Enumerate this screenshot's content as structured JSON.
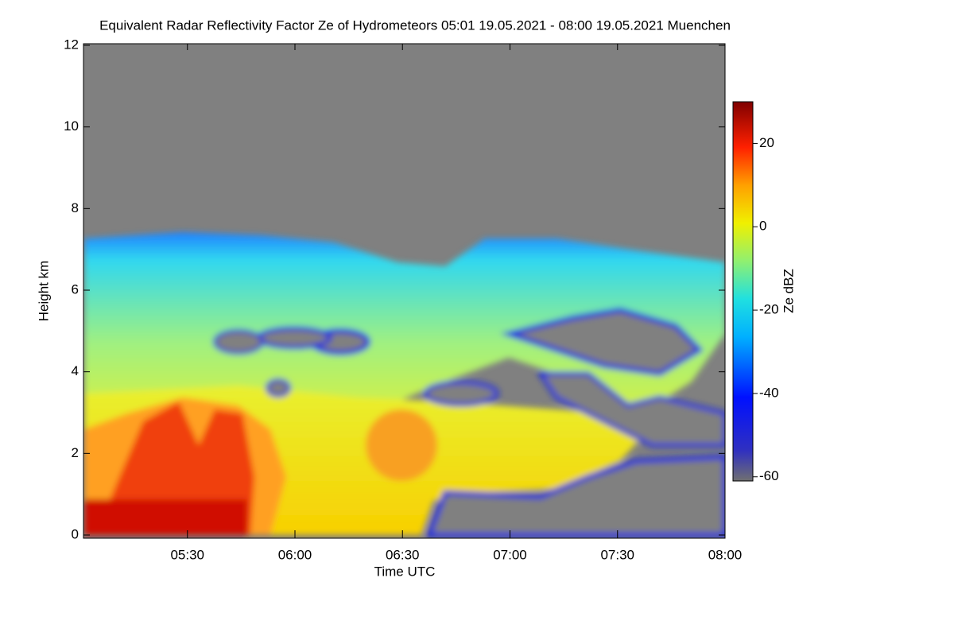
{
  "chart_data": {
    "type": "heatmap",
    "title": "Equivalent Radar Reflectivity Factor Ze of Hydrometeors   05:01 19.05.2021 - 08:00 19.05.2021 Muenchen",
    "x_label": "Time UTC",
    "y_label": "Height km",
    "xlim": [
      301,
      480
    ],
    "xticks": [
      {
        "value": 330,
        "label": "05:30"
      },
      {
        "value": 360,
        "label": "06:00"
      },
      {
        "value": 390,
        "label": "06:30"
      },
      {
        "value": 420,
        "label": "07:00"
      },
      {
        "value": 450,
        "label": "07:30"
      },
      {
        "value": 480,
        "label": "08:00"
      }
    ],
    "ylim": [
      0,
      12
    ],
    "yticks": [
      0,
      2,
      4,
      6,
      8,
      10,
      12
    ],
    "colorbar": {
      "label": "Ze dBZ",
      "lim": [
        -61,
        30
      ],
      "ticks": [
        20,
        0,
        -20,
        -40,
        -60
      ]
    }
  }
}
